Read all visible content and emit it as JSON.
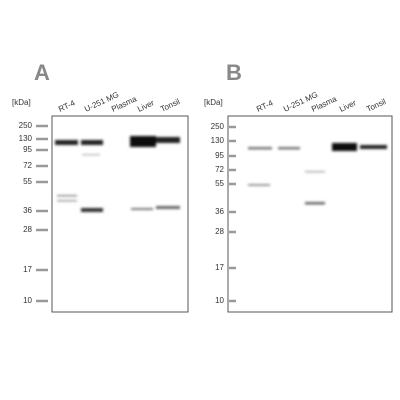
{
  "panels": [
    {
      "letter": "A",
      "unit": "[kDa]",
      "markers": [
        "250",
        "130",
        "95",
        "72",
        "55",
        "36",
        "28",
        "17",
        "10"
      ],
      "lanes": [
        "RT-4",
        "U-251 MG",
        "Plasma",
        "Liver",
        "Tonsil"
      ]
    },
    {
      "letter": "B",
      "unit": "[kDa]",
      "markers": [
        "250",
        "130",
        "95",
        "72",
        "55",
        "36",
        "28",
        "17",
        "10"
      ],
      "lanes": [
        "RT-4",
        "U-251 MG",
        "Plasma",
        "Liver",
        "Tonsil"
      ]
    }
  ]
}
